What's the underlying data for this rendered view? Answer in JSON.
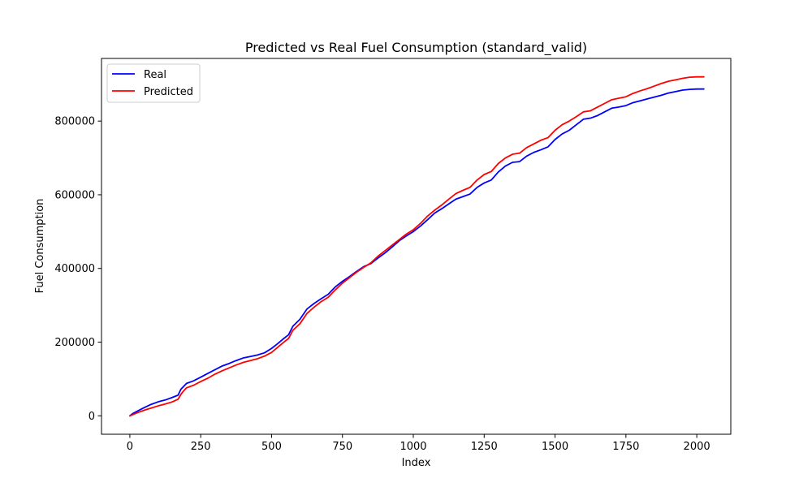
{
  "chart_data": {
    "type": "line",
    "title": "Predicted vs Real Fuel Consumption (standard_valid)",
    "xlabel": "Index",
    "ylabel": "Fuel Consumption",
    "xlim": [
      -100,
      2120
    ],
    "ylim": [
      -50000,
      970000
    ],
    "x_ticks": [
      0,
      250,
      500,
      750,
      1000,
      1250,
      1500,
      1750,
      2000
    ],
    "y_ticks": [
      0,
      200000,
      400000,
      600000,
      800000
    ],
    "grid": false,
    "legend_position": "top-left",
    "series": [
      {
        "name": "Real",
        "color": "#0000ff",
        "points": [
          [
            0,
            0
          ],
          [
            10,
            6000
          ],
          [
            25,
            12000
          ],
          [
            50,
            22000
          ],
          [
            75,
            31000
          ],
          [
            100,
            38000
          ],
          [
            125,
            43000
          ],
          [
            150,
            50000
          ],
          [
            170,
            56000
          ],
          [
            180,
            72000
          ],
          [
            190,
            80000
          ],
          [
            200,
            88000
          ],
          [
            225,
            95000
          ],
          [
            250,
            105000
          ],
          [
            275,
            115000
          ],
          [
            300,
            125000
          ],
          [
            325,
            135000
          ],
          [
            350,
            142000
          ],
          [
            375,
            150000
          ],
          [
            400,
            157000
          ],
          [
            425,
            161000
          ],
          [
            450,
            165000
          ],
          [
            475,
            171000
          ],
          [
            500,
            183000
          ],
          [
            520,
            195000
          ],
          [
            540,
            208000
          ],
          [
            560,
            220000
          ],
          [
            575,
            243000
          ],
          [
            600,
            262000
          ],
          [
            625,
            290000
          ],
          [
            650,
            305000
          ],
          [
            675,
            318000
          ],
          [
            700,
            330000
          ],
          [
            725,
            350000
          ],
          [
            750,
            365000
          ],
          [
            775,
            378000
          ],
          [
            800,
            392000
          ],
          [
            825,
            405000
          ],
          [
            850,
            413000
          ],
          [
            875,
            428000
          ],
          [
            900,
            442000
          ],
          [
            925,
            458000
          ],
          [
            950,
            475000
          ],
          [
            975,
            488000
          ],
          [
            1000,
            500000
          ],
          [
            1025,
            515000
          ],
          [
            1050,
            532000
          ],
          [
            1075,
            550000
          ],
          [
            1100,
            562000
          ],
          [
            1125,
            575000
          ],
          [
            1150,
            588000
          ],
          [
            1175,
            595000
          ],
          [
            1200,
            602000
          ],
          [
            1225,
            620000
          ],
          [
            1250,
            632000
          ],
          [
            1275,
            640000
          ],
          [
            1300,
            662000
          ],
          [
            1325,
            678000
          ],
          [
            1350,
            688000
          ],
          [
            1375,
            690000
          ],
          [
            1400,
            705000
          ],
          [
            1425,
            715000
          ],
          [
            1450,
            722000
          ],
          [
            1475,
            730000
          ],
          [
            1500,
            750000
          ],
          [
            1525,
            765000
          ],
          [
            1550,
            775000
          ],
          [
            1575,
            790000
          ],
          [
            1600,
            805000
          ],
          [
            1625,
            808000
          ],
          [
            1650,
            815000
          ],
          [
            1675,
            825000
          ],
          [
            1700,
            835000
          ],
          [
            1725,
            838000
          ],
          [
            1750,
            842000
          ],
          [
            1775,
            850000
          ],
          [
            1800,
            855000
          ],
          [
            1825,
            860000
          ],
          [
            1850,
            865000
          ],
          [
            1875,
            870000
          ],
          [
            1900,
            876000
          ],
          [
            1925,
            880000
          ],
          [
            1950,
            884000
          ],
          [
            1975,
            886000
          ],
          [
            2000,
            887000
          ],
          [
            2025,
            887000
          ]
        ]
      },
      {
        "name": "Predicted",
        "color": "#ff0000",
        "points": [
          [
            0,
            0
          ],
          [
            10,
            3000
          ],
          [
            25,
            8000
          ],
          [
            50,
            15000
          ],
          [
            75,
            21000
          ],
          [
            100,
            27000
          ],
          [
            125,
            32000
          ],
          [
            150,
            38000
          ],
          [
            170,
            45000
          ],
          [
            180,
            58000
          ],
          [
            190,
            68000
          ],
          [
            200,
            76000
          ],
          [
            225,
            83000
          ],
          [
            250,
            93000
          ],
          [
            275,
            102000
          ],
          [
            300,
            113000
          ],
          [
            325,
            122000
          ],
          [
            350,
            130000
          ],
          [
            375,
            138000
          ],
          [
            400,
            145000
          ],
          [
            425,
            150000
          ],
          [
            450,
            155000
          ],
          [
            475,
            162000
          ],
          [
            500,
            172000
          ],
          [
            520,
            185000
          ],
          [
            540,
            198000
          ],
          [
            560,
            210000
          ],
          [
            575,
            232000
          ],
          [
            600,
            250000
          ],
          [
            625,
            278000
          ],
          [
            650,
            295000
          ],
          [
            675,
            310000
          ],
          [
            700,
            322000
          ],
          [
            725,
            342000
          ],
          [
            750,
            360000
          ],
          [
            775,
            375000
          ],
          [
            800,
            390000
          ],
          [
            825,
            403000
          ],
          [
            850,
            415000
          ],
          [
            875,
            433000
          ],
          [
            900,
            448000
          ],
          [
            925,
            463000
          ],
          [
            950,
            478000
          ],
          [
            975,
            493000
          ],
          [
            1000,
            505000
          ],
          [
            1025,
            522000
          ],
          [
            1050,
            542000
          ],
          [
            1075,
            558000
          ],
          [
            1100,
            572000
          ],
          [
            1125,
            588000
          ],
          [
            1150,
            603000
          ],
          [
            1175,
            612000
          ],
          [
            1200,
            620000
          ],
          [
            1225,
            640000
          ],
          [
            1250,
            655000
          ],
          [
            1275,
            663000
          ],
          [
            1300,
            685000
          ],
          [
            1325,
            700000
          ],
          [
            1350,
            710000
          ],
          [
            1375,
            713000
          ],
          [
            1400,
            728000
          ],
          [
            1425,
            738000
          ],
          [
            1450,
            748000
          ],
          [
            1475,
            755000
          ],
          [
            1500,
            775000
          ],
          [
            1525,
            790000
          ],
          [
            1550,
            800000
          ],
          [
            1575,
            812000
          ],
          [
            1600,
            825000
          ],
          [
            1625,
            828000
          ],
          [
            1650,
            838000
          ],
          [
            1675,
            848000
          ],
          [
            1700,
            858000
          ],
          [
            1725,
            862000
          ],
          [
            1750,
            866000
          ],
          [
            1775,
            875000
          ],
          [
            1800,
            882000
          ],
          [
            1825,
            888000
          ],
          [
            1850,
            895000
          ],
          [
            1875,
            902000
          ],
          [
            1900,
            908000
          ],
          [
            1925,
            912000
          ],
          [
            1950,
            916000
          ],
          [
            1975,
            919000
          ],
          [
            2000,
            920000
          ],
          [
            2025,
            920000
          ]
        ]
      }
    ]
  }
}
